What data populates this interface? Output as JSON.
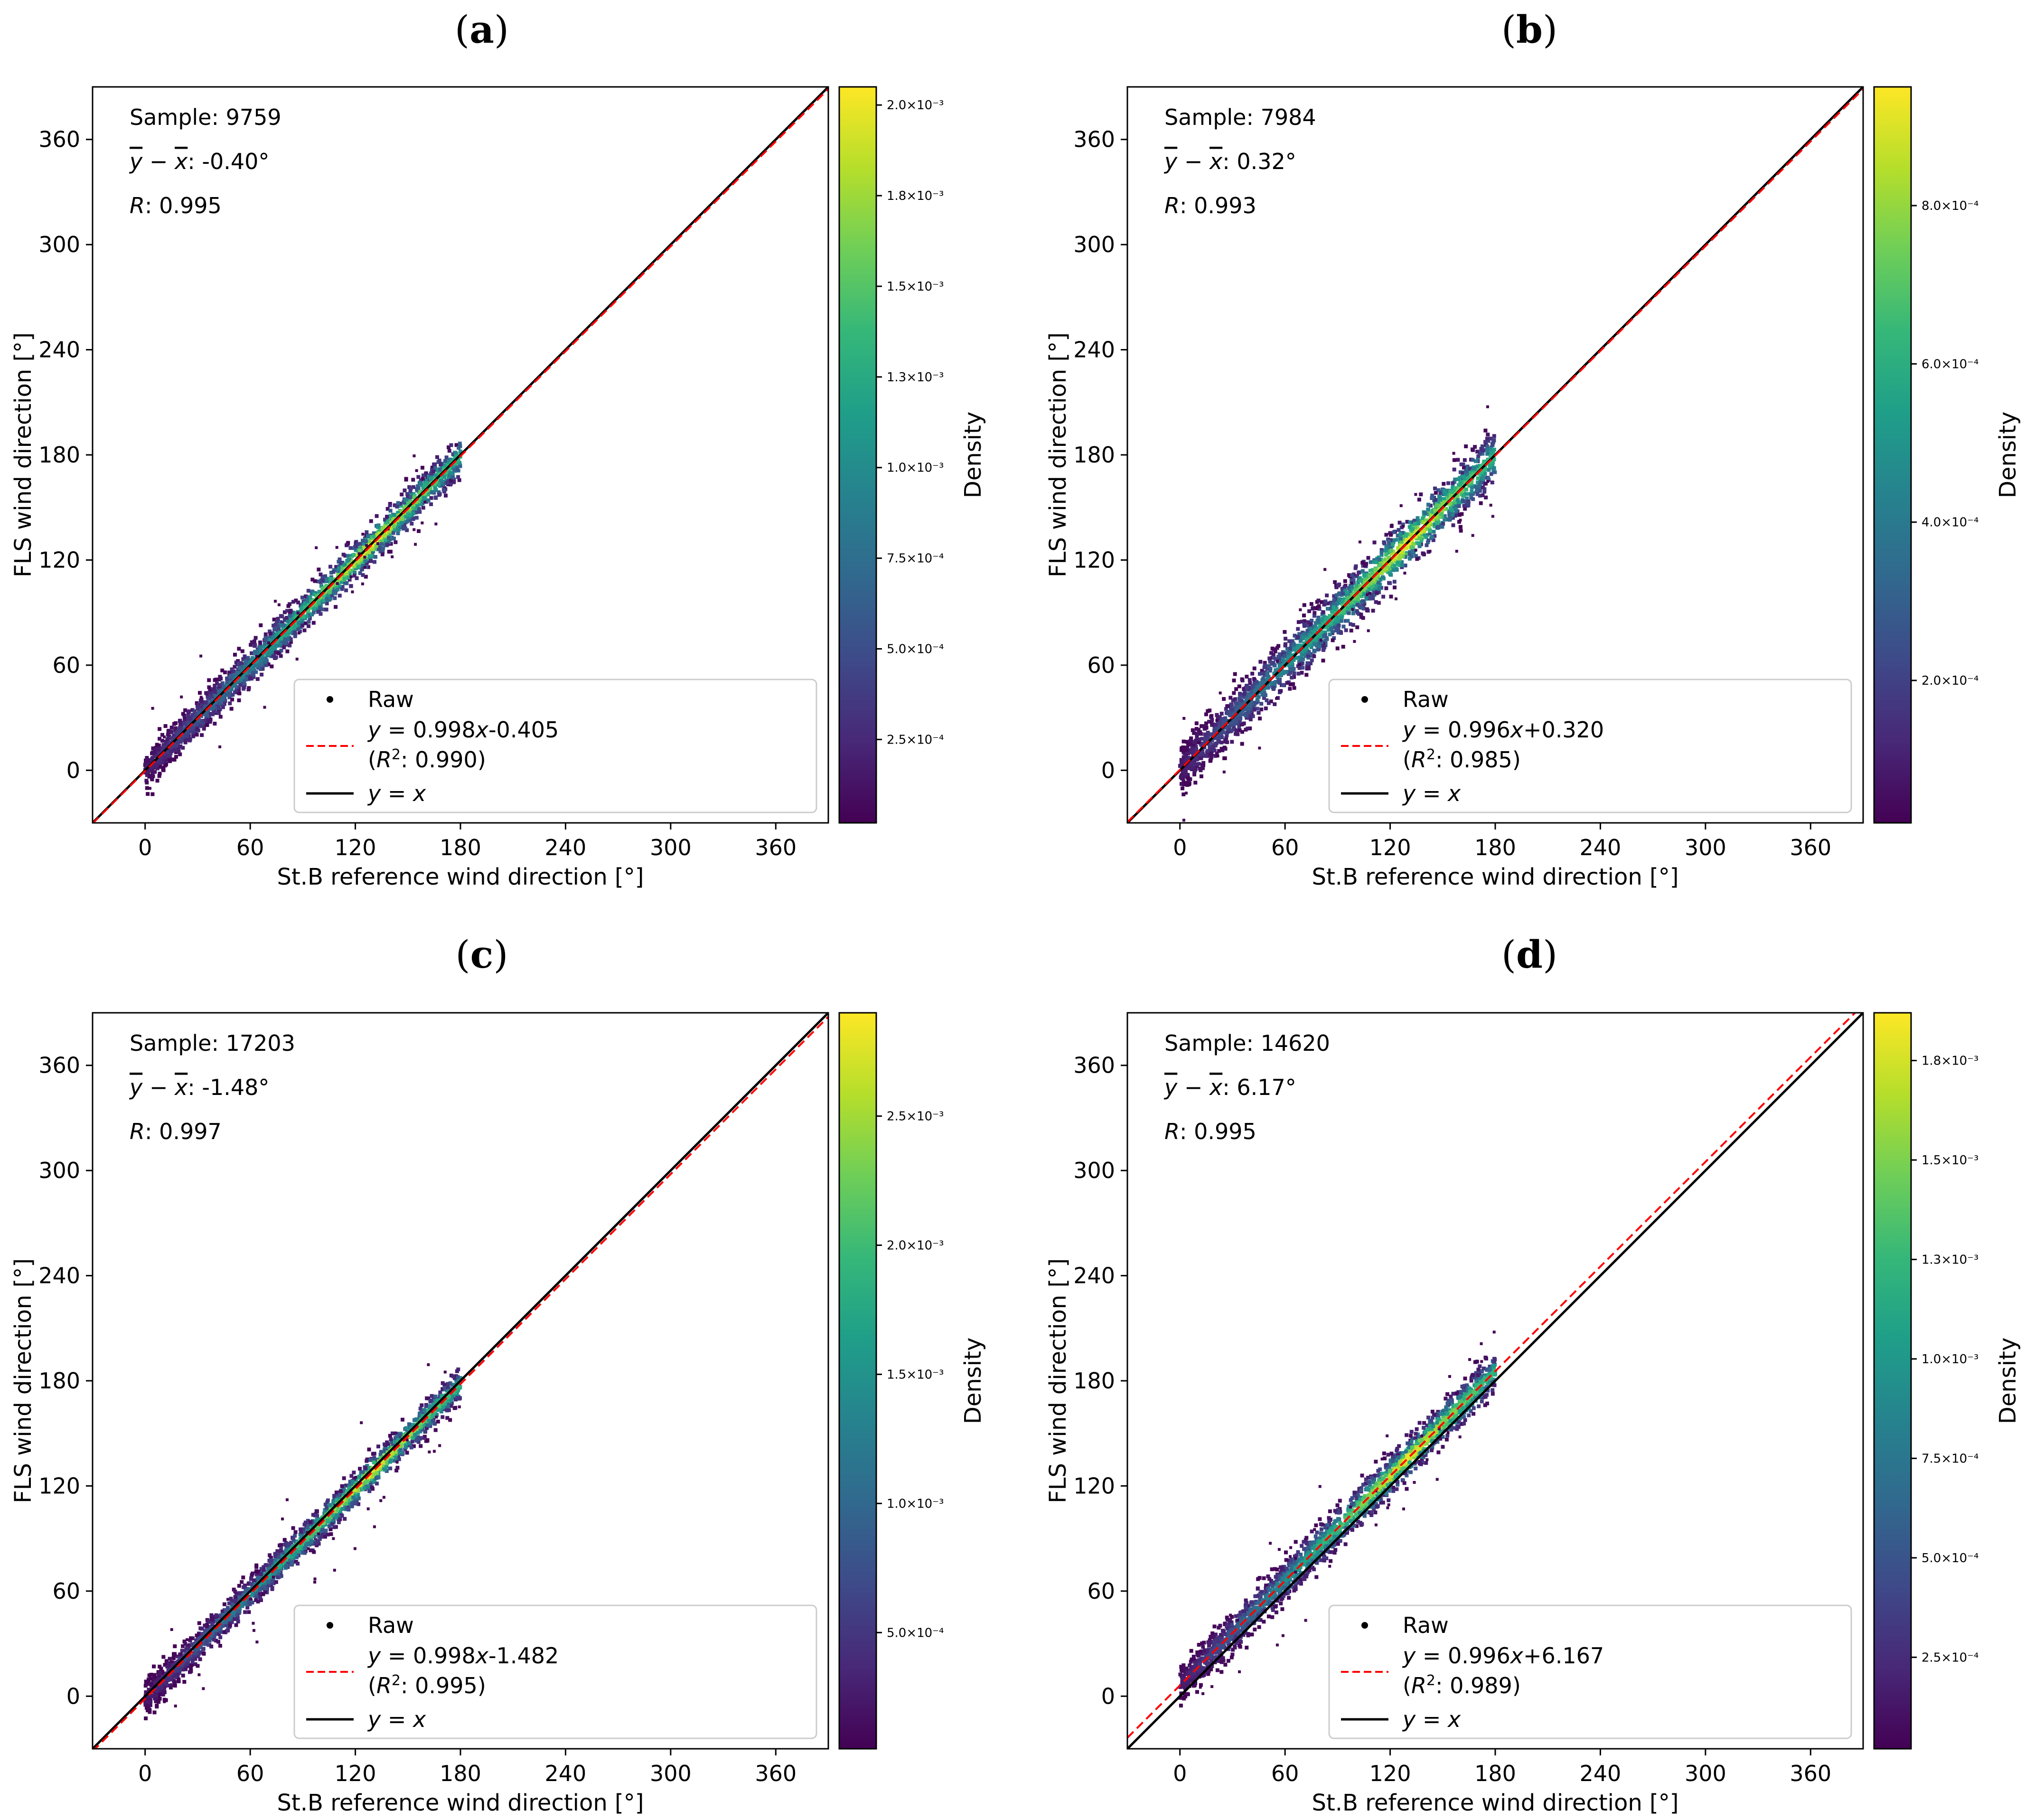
{
  "figure": {
    "x_axis_label": "St.B reference wind direction [°]",
    "y_axis_label": "FLS wind direction [°]",
    "colorbar_label": "Density",
    "legend": {
      "raw": "Raw",
      "identity": "y = x"
    }
  },
  "chart_data": [
    {
      "panel": "a",
      "type": "scatter",
      "title": "(a)",
      "xlabel": "St.B reference wind direction [°]",
      "ylabel": "FLS wind direction [°]",
      "xlim": [
        -30,
        390
      ],
      "ylim": [
        -30,
        390
      ],
      "xticks": [
        0,
        60,
        120,
        180,
        240,
        300,
        360
      ],
      "yticks": [
        0,
        60,
        120,
        180,
        240,
        300,
        360
      ],
      "stats": {
        "sample": "Sample: 9759",
        "bias": "-0.40°",
        "r": "0.995"
      },
      "fit": {
        "slope": 0.998,
        "intercept": -0.405,
        "equation": "0.998x-0.405",
        "r2": "0.990"
      },
      "data_range": [
        0,
        180
      ],
      "spread": 6,
      "colorbar": {
        "label": "Density",
        "ticks": [
          {
            "value": 0.00025,
            "label": "2.5×10⁻⁴"
          },
          {
            "value": 0.0005,
            "label": "5.0×10⁻⁴"
          },
          {
            "value": 0.00075,
            "label": "7.5×10⁻⁴"
          },
          {
            "value": 0.001,
            "label": "1.0×10⁻³"
          },
          {
            "value": 0.00125,
            "label": "1.3×10⁻³"
          },
          {
            "value": 0.0015,
            "label": "1.5×10⁻³"
          },
          {
            "value": 0.00175,
            "label": "1.8×10⁻³"
          },
          {
            "value": 0.002,
            "label": "2.0×10⁻³"
          }
        ],
        "range": [
          2e-05,
          0.00205
        ]
      }
    },
    {
      "panel": "b",
      "type": "scatter",
      "title": "(b)",
      "xlabel": "St.B reference wind direction [°]",
      "ylabel": "FLS wind direction [°]",
      "xlim": [
        -30,
        390
      ],
      "ylim": [
        -30,
        390
      ],
      "xticks": [
        0,
        60,
        120,
        180,
        240,
        300,
        360
      ],
      "yticks": [
        0,
        60,
        120,
        180,
        240,
        300,
        360
      ],
      "stats": {
        "sample": "Sample: 7984",
        "bias": "0.32°",
        "r": "0.993"
      },
      "fit": {
        "slope": 0.996,
        "intercept": 0.32,
        "equation": "0.996x+0.320",
        "r2": "0.985"
      },
      "data_range": [
        0,
        180
      ],
      "spread": 8,
      "colorbar": {
        "label": "Density",
        "ticks": [
          {
            "value": 0.0002,
            "label": "2.0×10⁻⁴"
          },
          {
            "value": 0.0004,
            "label": "4.0×10⁻⁴"
          },
          {
            "value": 0.0006,
            "label": "6.0×10⁻⁴"
          },
          {
            "value": 0.0008,
            "label": "8.0×10⁻⁴"
          }
        ],
        "range": [
          2e-05,
          0.00095
        ]
      }
    },
    {
      "panel": "c",
      "type": "scatter",
      "title": "(c)",
      "xlabel": "St.B reference wind direction [°]",
      "ylabel": "FLS wind direction [°]",
      "xlim": [
        -30,
        390
      ],
      "ylim": [
        -30,
        390
      ],
      "xticks": [
        0,
        60,
        120,
        180,
        240,
        300,
        360
      ],
      "yticks": [
        0,
        60,
        120,
        180,
        240,
        300,
        360
      ],
      "stats": {
        "sample": "Sample: 17203",
        "bias": "-1.48°",
        "r": "0.997"
      },
      "fit": {
        "slope": 0.998,
        "intercept": -1.482,
        "equation": "0.998x-1.482",
        "r2": "0.995"
      },
      "data_range": [
        0,
        180
      ],
      "spread": 5,
      "colorbar": {
        "label": "Density",
        "ticks": [
          {
            "value": 0.0005,
            "label": "5.0×10⁻⁴"
          },
          {
            "value": 0.001,
            "label": "1.0×10⁻³"
          },
          {
            "value": 0.0015,
            "label": "1.5×10⁻³"
          },
          {
            "value": 0.002,
            "label": "2.0×10⁻³"
          },
          {
            "value": 0.0025,
            "label": "2.5×10⁻³"
          }
        ],
        "range": [
          5e-05,
          0.0029
        ]
      }
    },
    {
      "panel": "d",
      "type": "scatter",
      "title": "(d)",
      "xlabel": "St.B reference wind direction [°]",
      "ylabel": "FLS wind direction [°]",
      "xlim": [
        -30,
        390
      ],
      "ylim": [
        -30,
        390
      ],
      "xticks": [
        0,
        60,
        120,
        180,
        240,
        300,
        360
      ],
      "yticks": [
        0,
        60,
        120,
        180,
        240,
        300,
        360
      ],
      "stats": {
        "sample": "Sample: 14620",
        "bias": "6.17°",
        "r": "0.995"
      },
      "fit": {
        "slope": 0.996,
        "intercept": 6.167,
        "equation": "0.996x+6.167",
        "r2": "0.989"
      },
      "data_range": [
        0,
        180
      ],
      "spread": 6,
      "colorbar": {
        "label": "Density",
        "ticks": [
          {
            "value": 0.00025,
            "label": "2.5×10⁻⁴"
          },
          {
            "value": 0.0005,
            "label": "5.0×10⁻⁴"
          },
          {
            "value": 0.00075,
            "label": "7.5×10⁻⁴"
          },
          {
            "value": 0.001,
            "label": "1.0×10⁻³"
          },
          {
            "value": 0.00125,
            "label": "1.3×10⁻³"
          },
          {
            "value": 0.0015,
            "label": "1.5×10⁻³"
          },
          {
            "value": 0.00175,
            "label": "1.8×10⁻³"
          }
        ],
        "range": [
          2e-05,
          0.00187
        ]
      }
    }
  ],
  "colors": {
    "fit_line": "#ff0000",
    "identity_line": "#000000",
    "viridis": [
      "#440154",
      "#482878",
      "#3e4a89",
      "#31688e",
      "#26828e",
      "#1f9e89",
      "#35b779",
      "#6ece58",
      "#b5de2b",
      "#fde725"
    ]
  }
}
